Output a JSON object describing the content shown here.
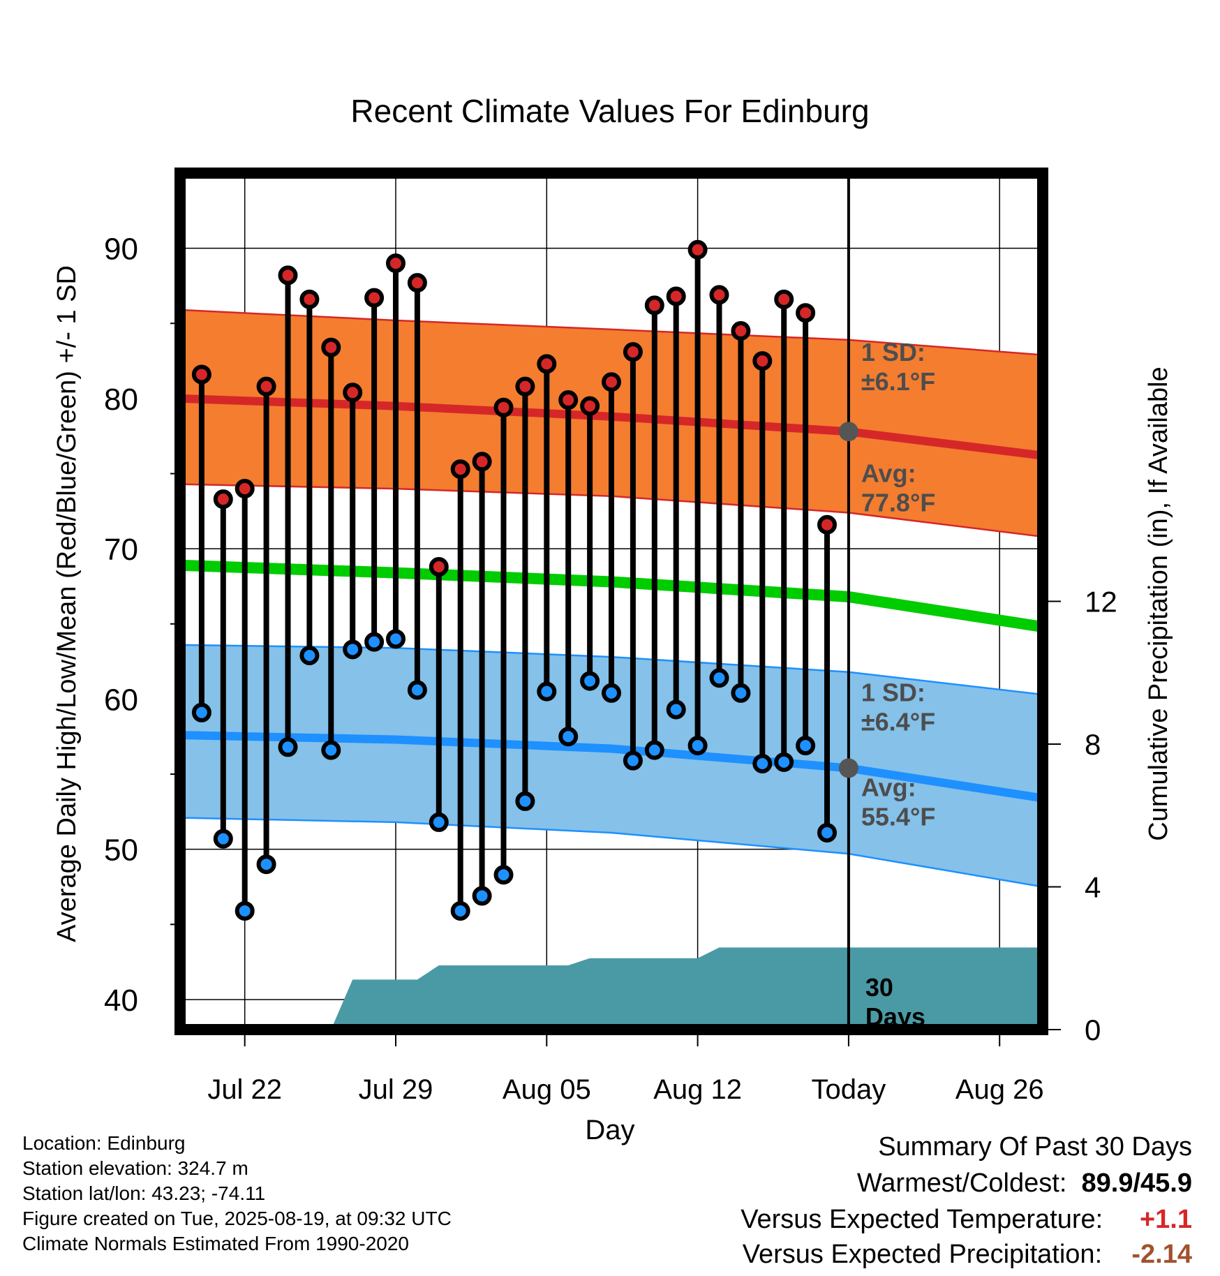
{
  "chart_data": {
    "type": "line",
    "title": "Recent Climate Values For Edinburg",
    "xlabel": "Day",
    "ylabel": "Average Daily High/Low/Mean (Red/Blue/Green) +/- 1 SD",
    "ylabel_right": "Cumulative Precipitation (in), If Available",
    "x_tick_labels": [
      "Jul 22",
      "Jul 29",
      "Aug 05",
      "Aug 12",
      "Today",
      "Aug 26"
    ],
    "y_ticks": [
      40,
      50,
      60,
      70,
      80,
      90
    ],
    "y_ticks_right": [
      0,
      4,
      8,
      12
    ],
    "ylim": [
      38,
      95
    ],
    "ylim_right": [
      0,
      24
    ],
    "xlim": [
      "Jul 19",
      "Aug 28"
    ],
    "grid": true,
    "today": "Aug 19",
    "dates": [
      "Jul 20",
      "Jul 21",
      "Jul 22",
      "Jul 23",
      "Jul 24",
      "Jul 25",
      "Jul 26",
      "Jul 27",
      "Jul 28",
      "Jul 29",
      "Jul 30",
      "Jul 31",
      "Aug 01",
      "Aug 02",
      "Aug 03",
      "Aug 04",
      "Aug 05",
      "Aug 06",
      "Aug 07",
      "Aug 08",
      "Aug 09",
      "Aug 10",
      "Aug 11",
      "Aug 12",
      "Aug 13",
      "Aug 14",
      "Aug 15",
      "Aug 16",
      "Aug 17",
      "Aug 18"
    ],
    "series": [
      {
        "name": "High",
        "color": "#d62728",
        "values": [
          81.6,
          73.3,
          74.0,
          80.8,
          88.2,
          86.6,
          83.4,
          80.4,
          86.7,
          89.0,
          87.7,
          68.8,
          75.3,
          75.8,
          79.4,
          80.8,
          82.3,
          79.9,
          79.5,
          81.1,
          83.1,
          86.2,
          86.8,
          89.9,
          86.9,
          84.5,
          82.5,
          86.6,
          85.7,
          71.6
        ]
      },
      {
        "name": "Low",
        "color": "#1e90ff",
        "values": [
          59.1,
          50.7,
          45.9,
          49.0,
          56.8,
          62.9,
          56.6,
          63.3,
          63.8,
          64.0,
          60.6,
          51.8,
          45.9,
          46.9,
          48.3,
          53.2,
          60.5,
          57.5,
          61.2,
          60.4,
          55.9,
          56.6,
          59.3,
          56.9,
          61.4,
          60.4,
          55.7,
          55.8,
          56.9,
          51.1
        ]
      }
    ],
    "normals": {
      "dates": [
        "Jul 19",
        "Jul 29",
        "Aug 08",
        "Aug 19",
        "Aug 28"
      ],
      "high_avg": [
        80.0,
        79.5,
        78.8,
        77.8,
        76.2
      ],
      "high_sd_upper": [
        85.9,
        85.2,
        84.6,
        83.9,
        82.9
      ],
      "high_sd_lower": [
        74.3,
        74.0,
        73.5,
        72.4,
        70.8
      ],
      "mean_avg": [
        68.9,
        68.4,
        67.8,
        66.8,
        64.8
      ],
      "low_avg": [
        57.6,
        57.3,
        56.7,
        55.4,
        53.4
      ],
      "low_sd_upper": [
        63.6,
        63.4,
        62.8,
        61.8,
        60.3
      ],
      "low_sd_lower": [
        52.1,
        51.8,
        51.1,
        49.7,
        47.5
      ]
    },
    "precipitation": {
      "dates": [
        "Jul 26",
        "Jul 27",
        "Jul 30",
        "Jul 31",
        "Aug 06",
        "Aug 07",
        "Aug 12",
        "Aug 13",
        "Aug 28"
      ],
      "values": [
        0,
        1.4,
        1.4,
        1.8,
        1.8,
        2.0,
        2.0,
        2.3,
        2.3
      ]
    },
    "annotations": {
      "high_sd_label": "1 SD:",
      "high_sd_value": "±6.1°F",
      "high_avg_label": "Avg:",
      "high_avg_value": "77.8°F",
      "low_sd_label": "1 SD:",
      "low_sd_value": "±6.4°F",
      "low_avg_label": "Avg:",
      "low_avg_value": "55.4°F",
      "days_line1": "30",
      "days_line2": "Days"
    }
  },
  "footer": {
    "location": "Location: Edinburg",
    "elevation": "Station elevation: 324.7 m",
    "latlon": "Station lat/lon: 43.23; -74.11",
    "created": "Figure created on Tue, 2025-08-19, at 09:32 UTC",
    "normals": "Climate Normals Estimated From 1990-2020"
  },
  "summary": {
    "title": "Summary Of Past 30 Days",
    "warmest_label": "Warmest/Coldest:",
    "warmest_value": "89.9/45.9",
    "temp_label": "Versus Expected Temperature:",
    "temp_value": "+1.1",
    "temp_color": "#d62728",
    "precip_label": "Versus Expected Precipitation:",
    "precip_value": "-2.14",
    "precip_color": "#a0522d"
  }
}
